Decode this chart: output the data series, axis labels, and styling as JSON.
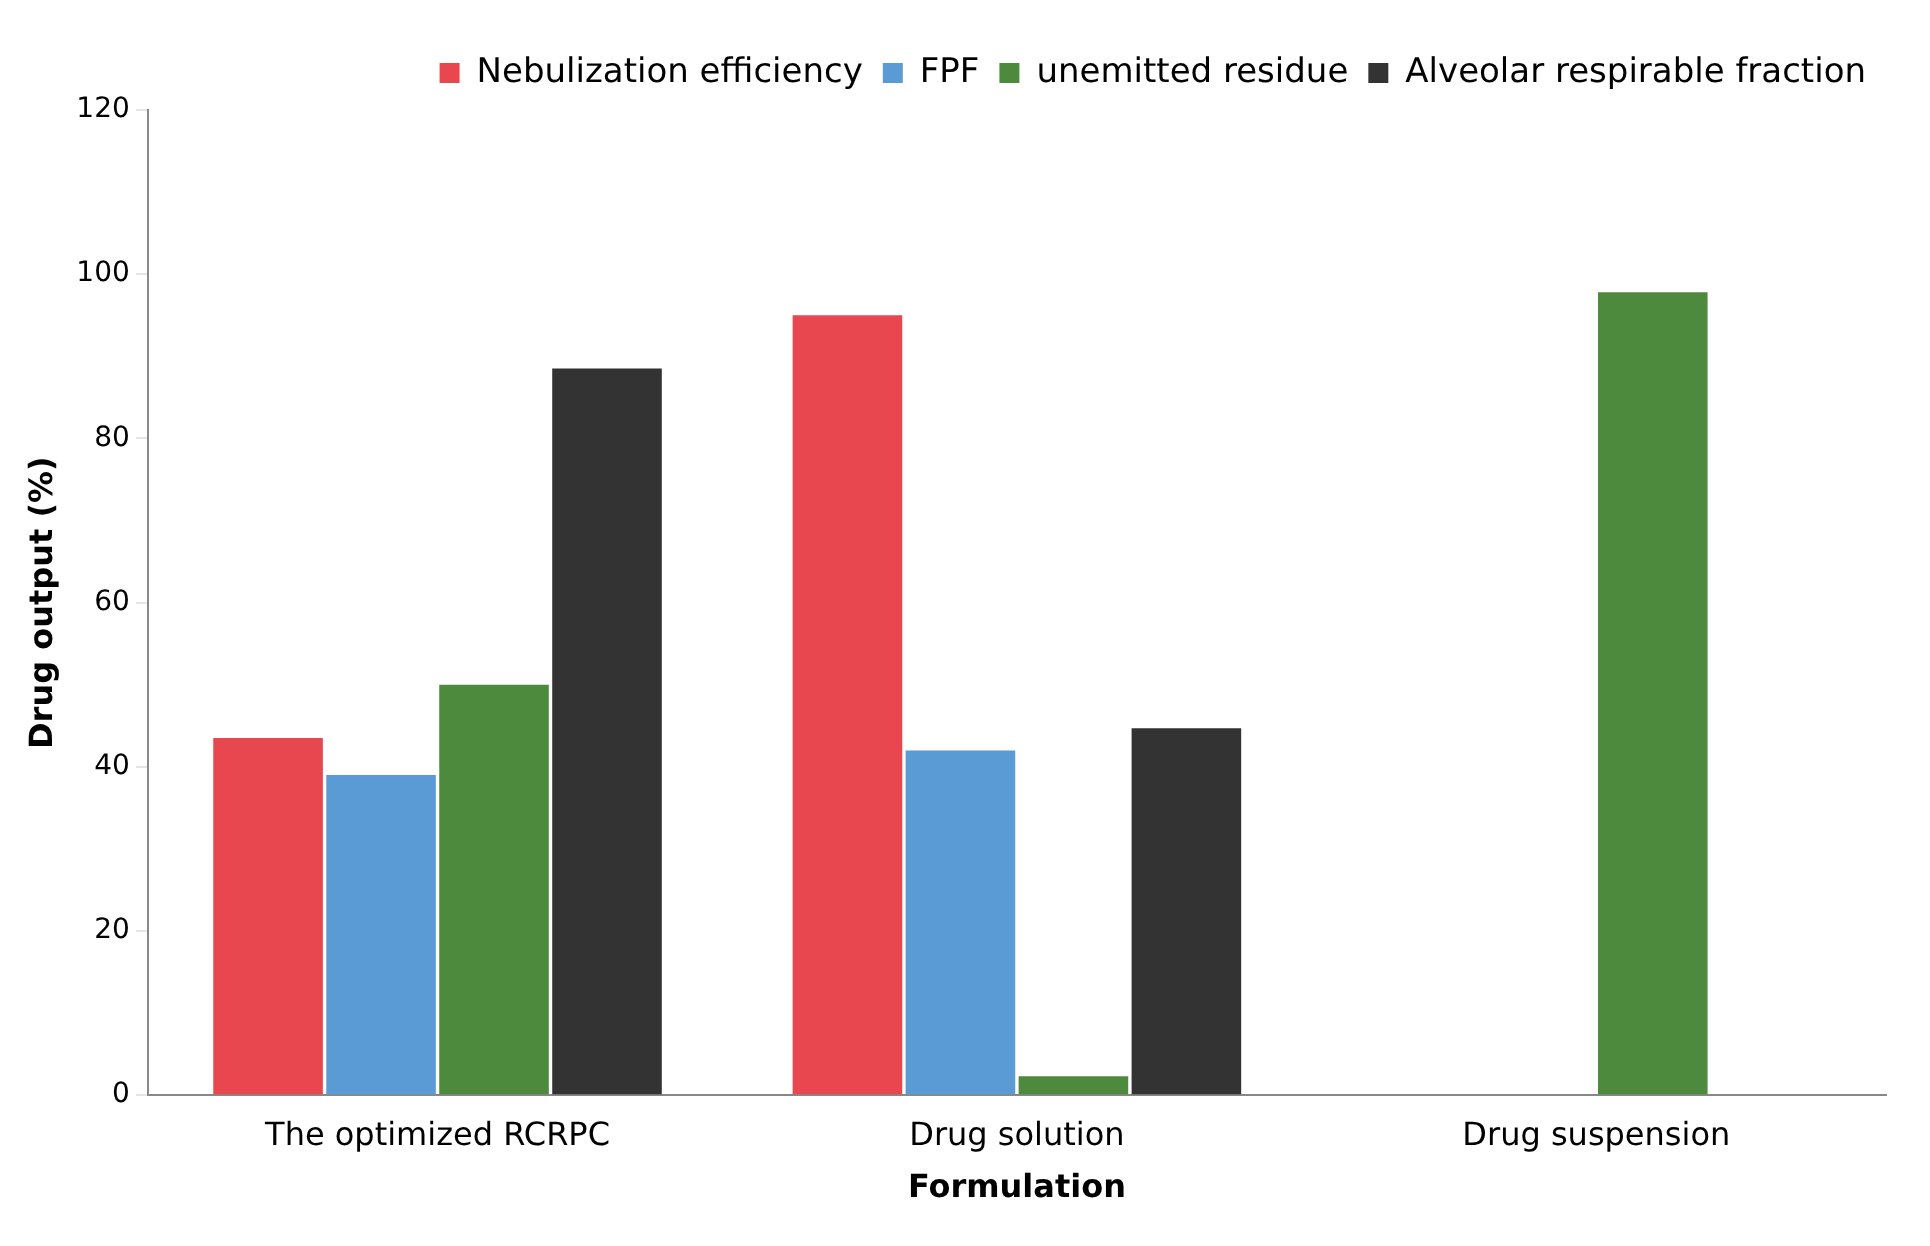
{
  "chart_data": {
    "type": "bar",
    "xlabel": "Formulation",
    "ylabel": "Drug output (%)",
    "categories": [
      "The optimized RCRPC",
      "Drug solution",
      "Drug suspension"
    ],
    "series": [
      {
        "name": "Nebulization efficiency",
        "color": "#e8474f",
        "values": [
          43.5,
          95,
          null
        ]
      },
      {
        "name": "FPF",
        "color": "#5b9bd5",
        "values": [
          39,
          42,
          null
        ]
      },
      {
        "name": "unemitted residue",
        "color": "#4e8a3e",
        "values": [
          50,
          2.3,
          97.8
        ]
      },
      {
        "name": "Alveolar respirable fraction",
        "color": "#333333",
        "values": [
          88.5,
          44.7,
          null
        ]
      }
    ],
    "ylim": [
      0,
      120
    ],
    "yticks": [
      0,
      20,
      40,
      60,
      80,
      100,
      120
    ],
    "grid": false,
    "legend": "top right"
  }
}
